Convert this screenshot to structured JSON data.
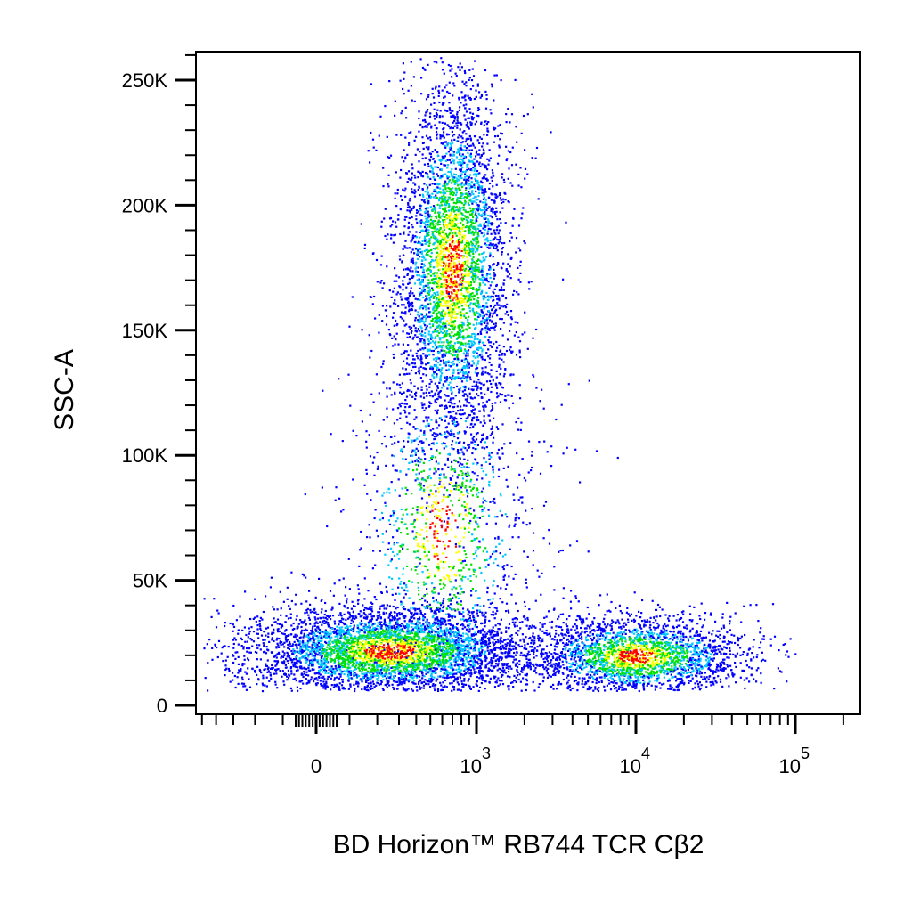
{
  "chart_data": {
    "type": "scatter",
    "subtype": "flow-cytometry-density-dot-plot",
    "xlabel": "BD Horizon™ RB744 TCR Cβ2",
    "ylabel": "SSC-A",
    "x_scale": "biexponential",
    "y_scale": "linear",
    "xlim": [
      -300,
      200000
    ],
    "ylim": [
      0,
      262144
    ],
    "y_ticks": [
      {
        "value": 0,
        "label": "0"
      },
      {
        "value": 50000,
        "label": "50K"
      },
      {
        "value": 100000,
        "label": "100K"
      },
      {
        "value": 150000,
        "label": "150K"
      },
      {
        "value": 200000,
        "label": "200K"
      },
      {
        "value": 250000,
        "label": "250K"
      }
    ],
    "x_ticks": [
      {
        "value": 0,
        "base": "0",
        "exp": ""
      },
      {
        "value": 1000,
        "base": "10",
        "exp": "3"
      },
      {
        "value": 10000,
        "base": "10",
        "exp": "4"
      },
      {
        "value": 100000,
        "base": "10",
        "exp": "5"
      }
    ],
    "density_colors": [
      "#0000ff",
      "#00c8ff",
      "#00e000",
      "#ffff00",
      "#ff0000"
    ],
    "populations": [
      {
        "label": "",
        "x_center": 700,
        "y_center": 175000,
        "x_spread_decades": 0.18,
        "y_spread": 38000,
        "events": 4200
      },
      {
        "label": "",
        "x_center": 250,
        "y_center": 22000,
        "x_spread_decades": 0.45,
        "y_spread": 9000,
        "events": 4500
      },
      {
        "label": "",
        "x_center": 10000,
        "y_center": 20000,
        "x_spread_decades": 0.35,
        "y_spread": 8000,
        "events": 2600
      },
      {
        "label": "",
        "x_center": 600,
        "y_center": 70000,
        "x_spread_decades": 0.3,
        "y_spread": 35000,
        "events": 1200
      }
    ],
    "grid": false,
    "legend": "none"
  }
}
